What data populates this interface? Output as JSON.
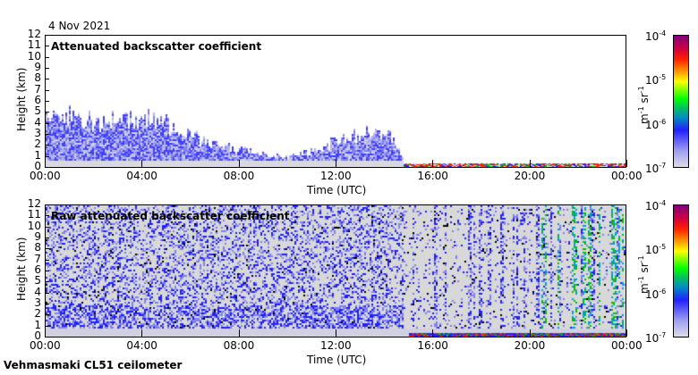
{
  "date": "4 Nov 2021",
  "footer": "Vehmasmaki CL51 ceilometer",
  "chart_data": [
    {
      "type": "heatmap",
      "title": "Attenuated backscatter coefficient",
      "xlabel": "Time (UTC)",
      "ylabel": "Height (km)",
      "xticks": [
        "00:00",
        "04:00",
        "08:00",
        "12:00",
        "16:00",
        "20:00",
        "00:00"
      ],
      "yticks": [
        "0",
        "1",
        "2",
        "3",
        "4",
        "5",
        "6",
        "7",
        "8",
        "9",
        "10",
        "11",
        "12"
      ],
      "ylim": [
        0,
        12
      ],
      "xlim_hours": [
        0,
        24
      ],
      "cloud_top_km_by_hour": [
        4.5,
        4.5,
        4.0,
        4.2,
        4.5,
        3.8,
        2.8,
        2.0,
        1.6,
        1.2,
        0.9,
        1.4,
        2.4,
        3.0,
        3.4,
        0.3,
        0.3,
        0.3,
        0.3,
        0.3,
        0.5,
        0.3,
        0.3,
        0.3,
        0.3
      ],
      "data_gap_start_hours": 14.8
    },
    {
      "type": "heatmap",
      "title": "Raw attenuated backscatter coefficient",
      "xlabel": "Time (UTC)",
      "ylabel": "Height (km)",
      "xticks": [
        "00:00",
        "04:00",
        "08:00",
        "12:00",
        "16:00",
        "20:00",
        "00:00"
      ],
      "yticks": [
        "0",
        "1",
        "2",
        "3",
        "4",
        "5",
        "6",
        "7",
        "8",
        "9",
        "10",
        "11",
        "12"
      ],
      "ylim": [
        0,
        12
      ],
      "xlim_hours": [
        0,
        24
      ]
    }
  ],
  "colorbar": {
    "labels": [
      "10",
      "10",
      "10",
      "10"
    ],
    "exponents": [
      "-4",
      "-5",
      "-6",
      "-7"
    ],
    "unit_m": "m",
    "unit_m_exp": "-1",
    "unit_sr": " sr",
    "unit_sr_exp": "-1"
  }
}
